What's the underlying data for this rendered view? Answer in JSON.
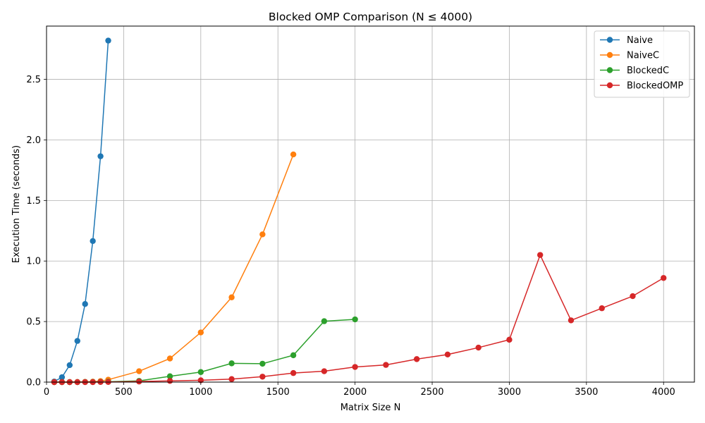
{
  "chart_data": {
    "type": "line",
    "title": "Blocked OMP Comparison (N ≤ 4000)",
    "xlabel": "Matrix Size N",
    "ylabel": "Execution Time (seconds)",
    "xlim": [
      0,
      4200
    ],
    "ylim": [
      0,
      2.94
    ],
    "xticks": [
      0,
      500,
      1000,
      1500,
      2000,
      2500,
      3000,
      3500,
      4000
    ],
    "yticks": [
      0.0,
      0.5,
      1.0,
      1.5,
      2.0,
      2.5
    ],
    "xtick_labels": [
      "0",
      "500",
      "1000",
      "1500",
      "2000",
      "2500",
      "3000",
      "3500",
      "4000"
    ],
    "ytick_labels": [
      "0.0",
      "0.5",
      "1.0",
      "1.5",
      "2.0",
      "2.5"
    ],
    "grid": true,
    "legend_position": "top-right",
    "series": [
      {
        "name": "Naive",
        "color": "#1f77b4",
        "x": [
          50,
          100,
          150,
          200,
          250,
          300,
          350,
          400
        ],
        "y": [
          0.005,
          0.04,
          0.14,
          0.34,
          0.645,
          1.165,
          1.865,
          2.82
        ]
      },
      {
        "name": "NaiveC",
        "color": "#ff7f0e",
        "x": [
          50,
          100,
          150,
          200,
          250,
          300,
          350,
          400,
          600,
          800,
          1000,
          1200,
          1400,
          1600
        ],
        "y": [
          0.0,
          0.0,
          0.0,
          0.001,
          0.002,
          0.004,
          0.008,
          0.02,
          0.09,
          0.195,
          0.41,
          0.7,
          1.22,
          1.88
        ]
      },
      {
        "name": "BlockedC",
        "color": "#2ca02c",
        "x": [
          50,
          100,
          150,
          200,
          250,
          300,
          350,
          400,
          600,
          800,
          1000,
          1200,
          1400,
          1600,
          1800,
          2000
        ],
        "y": [
          0.0,
          0.0,
          0.0,
          0.0,
          0.001,
          0.001,
          0.002,
          0.003,
          0.01,
          0.048,
          0.083,
          0.155,
          0.152,
          0.222,
          0.503,
          0.518
        ]
      },
      {
        "name": "BlockedOMP",
        "color": "#d62728",
        "x": [
          50,
          100,
          150,
          200,
          250,
          300,
          350,
          400,
          600,
          800,
          1000,
          1200,
          1400,
          1600,
          1800,
          2000,
          2200,
          2400,
          2600,
          2800,
          3000,
          3200,
          3400,
          3600,
          3800,
          4000
        ],
        "y": [
          0.0,
          0.0,
          0.0,
          0.0,
          0.0,
          0.0,
          0.001,
          0.001,
          0.005,
          0.01,
          0.015,
          0.025,
          0.045,
          0.075,
          0.09,
          0.125,
          0.142,
          0.19,
          0.228,
          0.285,
          0.35,
          1.05,
          0.51,
          0.61,
          0.71,
          0.86
        ]
      }
    ]
  }
}
